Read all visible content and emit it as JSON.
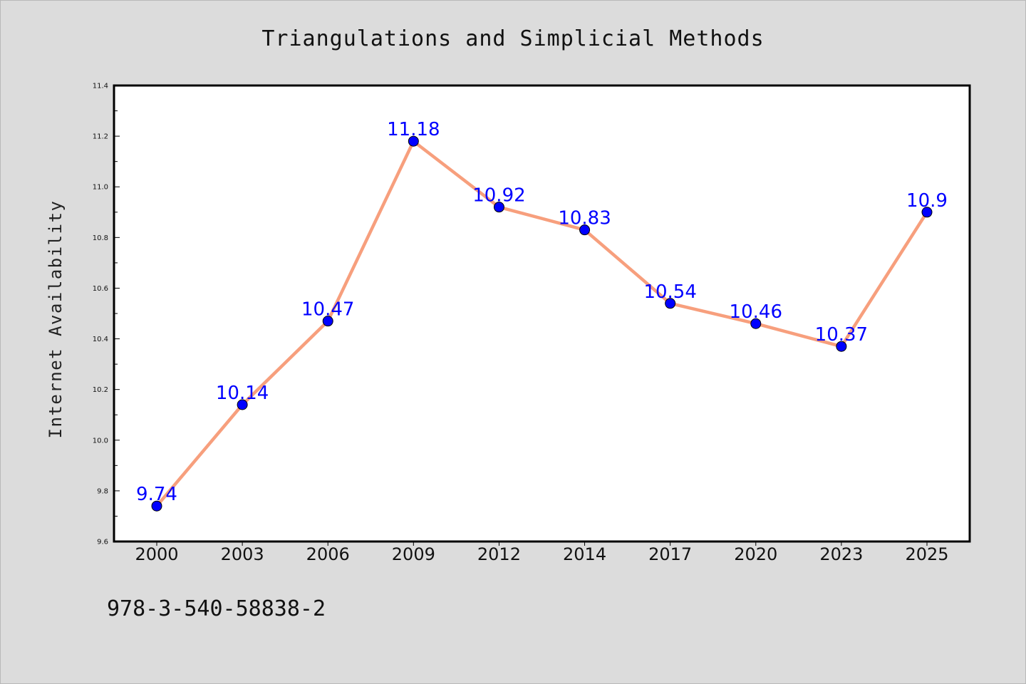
{
  "footnote": "978-3-540-58838-2",
  "chart_data": {
    "type": "line",
    "title": "Triangulations and Simplicial Methods",
    "xlabel": "",
    "ylabel": "Internet Availability",
    "categories": [
      "2000",
      "2003",
      "2006",
      "2009",
      "2012",
      "2014",
      "2017",
      "2020",
      "2023",
      "2025"
    ],
    "series": [
      {
        "values": [
          9.74,
          10.14,
          10.47,
          11.18,
          10.92,
          10.83,
          10.54,
          10.46,
          10.37,
          10.9
        ],
        "labels": [
          "9.74",
          "10.14",
          "10.47",
          "11.18",
          "10.92",
          "10.83",
          "10.54",
          "10.46",
          "10.37",
          "10.9"
        ],
        "line_color": "#f79f7d",
        "marker_color": "#0000ff"
      }
    ],
    "ylim": [
      9.6,
      11.4
    ],
    "yticks": [
      "9.6",
      "9.8",
      "10.0",
      "10.2",
      "10.4",
      "10.6",
      "10.8",
      "11.0",
      "11.2",
      "11.4"
    ],
    "grid": false,
    "legend": "none",
    "background": "#dcdcdc",
    "plot_background": "#ffffff"
  }
}
